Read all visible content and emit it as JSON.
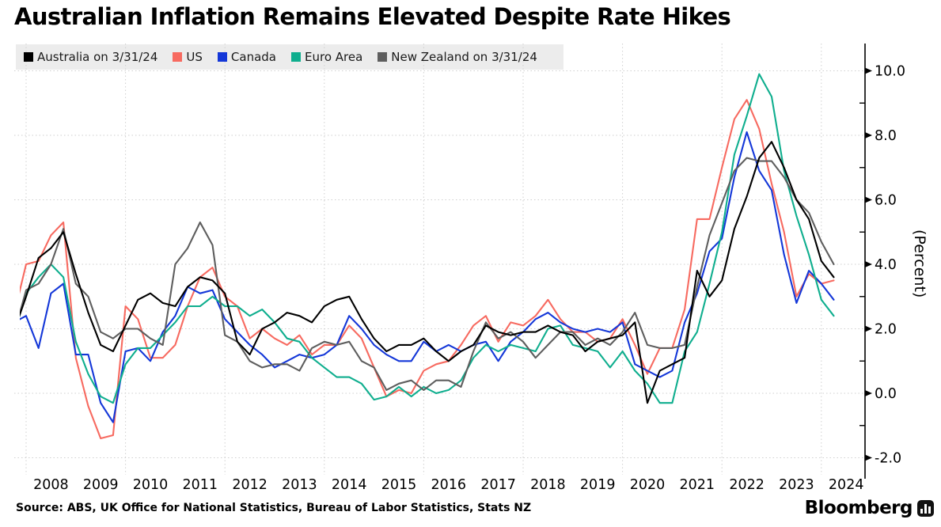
{
  "title": "Australian Inflation Remains Elevated Despite Rate Hikes",
  "source": "Source: ABS, UK Office for National Statistics, Bureau of Labor Statistics, Stats NZ",
  "branding": {
    "wordmark": "Bloomberg",
    "icon": "bloomberg-terminal-bars-icon"
  },
  "colors": {
    "background": "#ffffff",
    "legend_background": "#ececec",
    "gridline": "#cfcfcf",
    "axis": "#000000",
    "australia": "#000000",
    "us": "#f76a60",
    "canada": "#1437d8",
    "euro_area": "#0fae8e",
    "new_zealand": "#5e5e5e"
  },
  "chart_data": {
    "type": "line",
    "title": "Australian Inflation Remains Elevated Despite Rate Hikes",
    "xlabel": "",
    "ylabel": "(Percent)",
    "ylim": [
      -2.6,
      10.8
    ],
    "xlim": [
      2007.87,
      2024.5
    ],
    "grid": "dotted",
    "legend_position": "top-left",
    "yticks_major": [
      -2,
      0,
      2,
      4,
      6,
      8,
      10
    ],
    "ytick_labels": [
      "-2.0",
      "0.0",
      "2.0",
      "4.0",
      "6.0",
      "8.0",
      "10.0"
    ],
    "yticks_minor": [
      -1,
      1,
      3,
      5,
      7,
      9
    ],
    "xtick_labels": [
      "2008",
      "2009",
      "2010",
      "2011",
      "2012",
      "2013",
      "2014",
      "2015",
      "2016",
      "2017",
      "2018",
      "2019",
      "2020",
      "2021",
      "2022",
      "2023",
      "2024"
    ],
    "x_gridline_years": [
      2008,
      2010,
      2012,
      2014,
      2016,
      2018,
      2020,
      2022,
      2024
    ],
    "x": [
      2007.75,
      2008.0,
      2008.25,
      2008.5,
      2008.75,
      2009.0,
      2009.25,
      2009.5,
      2009.75,
      2010.0,
      2010.25,
      2010.5,
      2010.75,
      2011.0,
      2011.25,
      2011.5,
      2011.75,
      2012.0,
      2012.25,
      2012.5,
      2012.75,
      2013.0,
      2013.25,
      2013.5,
      2013.75,
      2014.0,
      2014.25,
      2014.5,
      2014.75,
      2015.0,
      2015.25,
      2015.5,
      2015.75,
      2016.0,
      2016.25,
      2016.5,
      2016.75,
      2017.0,
      2017.25,
      2017.5,
      2017.75,
      2018.0,
      2018.25,
      2018.5,
      2018.75,
      2019.0,
      2019.25,
      2019.5,
      2019.75,
      2020.0,
      2020.25,
      2020.5,
      2020.75,
      2021.0,
      2021.25,
      2021.5,
      2021.75,
      2022.0,
      2022.25,
      2022.5,
      2022.75,
      2023.0,
      2023.25,
      2023.5,
      2023.75,
      2024.0,
      2024.25
    ],
    "series": [
      {
        "name": "US",
        "color_key": "us",
        "values": [
          2.4,
          4.0,
          4.1,
          4.9,
          5.3,
          1.1,
          -0.4,
          -1.4,
          -1.3,
          2.7,
          2.3,
          1.1,
          1.1,
          1.5,
          2.7,
          3.6,
          3.9,
          3.0,
          2.7,
          1.7,
          2.0,
          1.7,
          1.5,
          1.8,
          1.2,
          1.5,
          1.5,
          2.1,
          1.7,
          0.8,
          -0.1,
          0.1,
          0.0,
          0.7,
          0.9,
          1.0,
          1.5,
          2.1,
          2.4,
          1.6,
          2.2,
          2.1,
          2.4,
          2.9,
          2.3,
          1.9,
          1.9,
          1.6,
          1.7,
          2.3,
          1.5,
          0.6,
          1.4,
          1.4,
          2.6,
          5.4,
          5.4,
          7.0,
          8.5,
          9.1,
          8.2,
          6.5,
          5.0,
          3.0,
          3.7,
          3.4,
          3.5
        ]
      },
      {
        "name": "Canada",
        "color_key": "canada",
        "values": [
          2.2,
          2.4,
          1.4,
          3.1,
          3.4,
          1.2,
          1.2,
          -0.3,
          -0.9,
          1.3,
          1.4,
          1.0,
          1.9,
          2.4,
          3.3,
          3.1,
          3.2,
          2.3,
          1.9,
          1.5,
          1.2,
          0.8,
          1.0,
          1.2,
          1.1,
          1.2,
          1.5,
          2.4,
          2.0,
          1.5,
          1.2,
          1.0,
          1.0,
          1.6,
          1.3,
          1.5,
          1.3,
          1.5,
          1.6,
          1.0,
          1.6,
          1.9,
          2.3,
          2.5,
          2.2,
          2.0,
          1.9,
          2.0,
          1.9,
          2.2,
          0.9,
          0.7,
          0.5,
          0.7,
          2.2,
          3.1,
          4.4,
          4.8,
          6.7,
          8.1,
          6.9,
          6.3,
          4.3,
          2.8,
          3.8,
          3.4,
          2.9
        ]
      },
      {
        "name": "Euro Area",
        "color_key": "euro_area",
        "values": [
          1.8,
          3.1,
          3.6,
          4.0,
          3.6,
          1.6,
          0.6,
          -0.1,
          -0.3,
          0.9,
          1.4,
          1.4,
          1.8,
          2.2,
          2.7,
          2.7,
          3.0,
          2.7,
          2.7,
          2.4,
          2.6,
          2.2,
          1.7,
          1.6,
          1.1,
          0.8,
          0.5,
          0.5,
          0.3,
          -0.2,
          -0.1,
          0.2,
          -0.1,
          0.2,
          0.0,
          0.1,
          0.4,
          1.1,
          1.5,
          1.3,
          1.5,
          1.4,
          1.3,
          2.0,
          2.1,
          1.5,
          1.4,
          1.3,
          0.8,
          1.3,
          0.7,
          0.3,
          -0.3,
          -0.3,
          1.3,
          1.9,
          3.4,
          5.0,
          7.4,
          8.6,
          9.9,
          9.2,
          6.9,
          5.5,
          4.3,
          2.9,
          2.4
        ]
      },
      {
        "name": "New Zealand on 3/31/24",
        "color_key": "new_zealand",
        "values": [
          1.8,
          3.2,
          3.4,
          4.0,
          5.1,
          3.4,
          3.0,
          1.9,
          1.7,
          2.0,
          2.0,
          1.7,
          1.5,
          4.0,
          4.5,
          5.3,
          4.6,
          1.8,
          1.6,
          1.0,
          0.8,
          0.9,
          0.9,
          0.7,
          1.4,
          1.6,
          1.5,
          1.6,
          1.0,
          0.8,
          0.1,
          0.3,
          0.4,
          0.1,
          0.4,
          0.4,
          0.2,
          1.3,
          2.2,
          1.7,
          1.9,
          1.6,
          1.1,
          1.5,
          1.9,
          1.9,
          1.5,
          1.7,
          1.5,
          1.9,
          2.5,
          1.5,
          1.4,
          1.4,
          1.5,
          3.3,
          4.9,
          5.9,
          6.9,
          7.3,
          7.2,
          7.2,
          6.7,
          6.0,
          5.6,
          4.7,
          4.0
        ]
      },
      {
        "name": "Australia on 3/31/24",
        "color_key": "australia",
        "values": [
          1.9,
          3.0,
          4.2,
          4.5,
          5.0,
          3.7,
          2.5,
          1.5,
          1.3,
          2.1,
          2.9,
          3.1,
          2.8,
          2.7,
          3.3,
          3.6,
          3.5,
          3.1,
          1.6,
          1.2,
          2.0,
          2.2,
          2.5,
          2.4,
          2.2,
          2.7,
          2.9,
          3.0,
          2.3,
          1.7,
          1.3,
          1.5,
          1.5,
          1.7,
          1.3,
          1.0,
          1.3,
          1.5,
          2.1,
          1.9,
          1.8,
          1.9,
          1.9,
          2.1,
          1.9,
          1.8,
          1.3,
          1.6,
          1.7,
          1.8,
          2.2,
          -0.3,
          0.7,
          0.9,
          1.1,
          3.8,
          3.0,
          3.5,
          5.1,
          6.1,
          7.3,
          7.8,
          7.0,
          6.0,
          5.4,
          4.1,
          3.6
        ]
      }
    ],
    "legend_order": [
      "Australia on 3/31/24",
      "US",
      "Canada",
      "Euro Area",
      "New Zealand on 3/31/24"
    ]
  }
}
